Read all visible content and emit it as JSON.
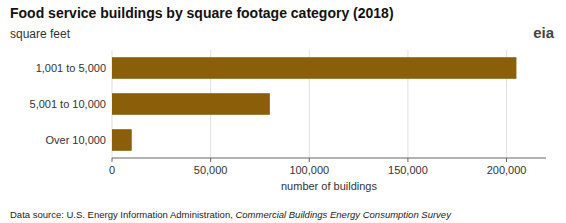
{
  "chart_data": {
    "type": "bar",
    "orientation": "horizontal",
    "title": "Food service buildings by square footage category (2018)",
    "subtitle": "square feet",
    "x_label": "number of buildings",
    "annotations": [
      "Data source: U.S. Energy Information Administration, ",
      "Commercial Buildings Energy Consumption Survey",
      "eia"
    ],
    "categories": [
      "1,001 to 5,000",
      "5,001 to 10,000",
      "Over 10,000"
    ],
    "values": [
      205000,
      80000,
      10000
    ],
    "color": "#8B5E0A",
    "xlim": [
      0,
      220000
    ],
    "xticks": [
      0,
      {
        "value": 50000,
        "label": "50,000"
      },
      {
        "value": 100000,
        "label": "100,000"
      },
      {
        "value": 150000,
        "label": "150,000"
      },
      {
        "value": 200000,
        "label": "200,000"
      }
    ],
    "grid": true
  }
}
